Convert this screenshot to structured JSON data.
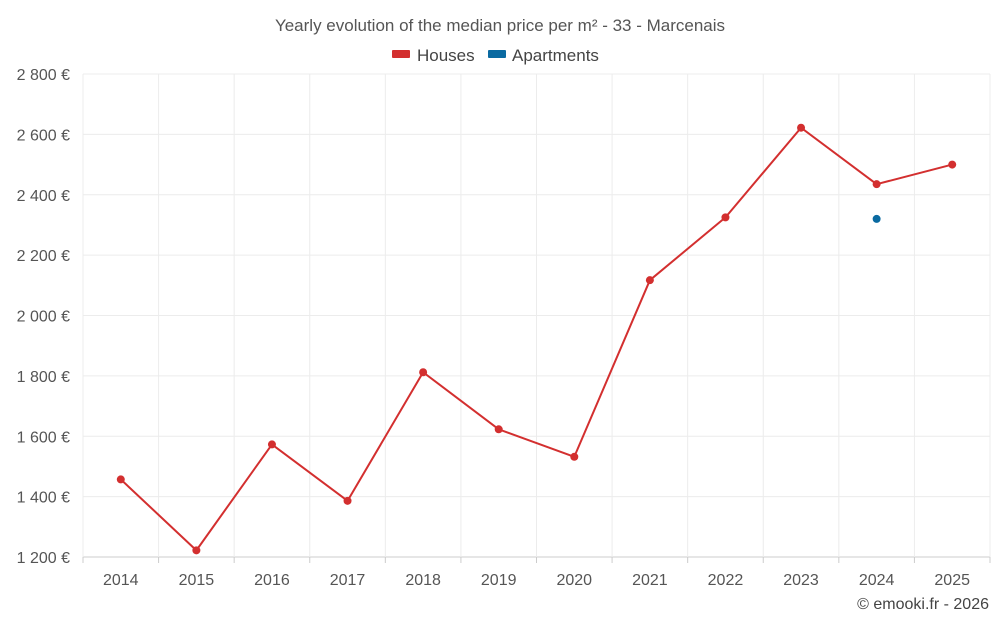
{
  "chart_data": {
    "type": "line",
    "title": "Yearly evolution of the median price per m² - 33 - Marcenais",
    "xlabel": "",
    "ylabel": "",
    "categories": [
      "2014",
      "2015",
      "2016",
      "2017",
      "2018",
      "2019",
      "2020",
      "2021",
      "2022",
      "2023",
      "2024",
      "2025"
    ],
    "ylim": [
      1200,
      2800
    ],
    "yticks": [
      1200,
      1400,
      1600,
      1800,
      2000,
      2200,
      2400,
      2600,
      2800
    ],
    "ytick_labels": [
      "1 200 €",
      "1 400 €",
      "1 600 €",
      "1 800 €",
      "2 000 €",
      "2 200 €",
      "2 400 €",
      "2 600 €",
      "2 800 €"
    ],
    "grid": true,
    "legend_position": "top-center",
    "series": [
      {
        "name": "Houses",
        "color": "#d32f2f",
        "values": [
          1457,
          1222,
          1573,
          1386,
          1812,
          1623,
          1532,
          2117,
          2325,
          2622,
          2435,
          2500
        ]
      },
      {
        "name": "Apartments",
        "color": "#0a6aa1",
        "values": [
          null,
          null,
          null,
          null,
          null,
          null,
          null,
          null,
          null,
          null,
          2320,
          null
        ]
      }
    ],
    "credit": "© emooki.fr - 2026"
  }
}
